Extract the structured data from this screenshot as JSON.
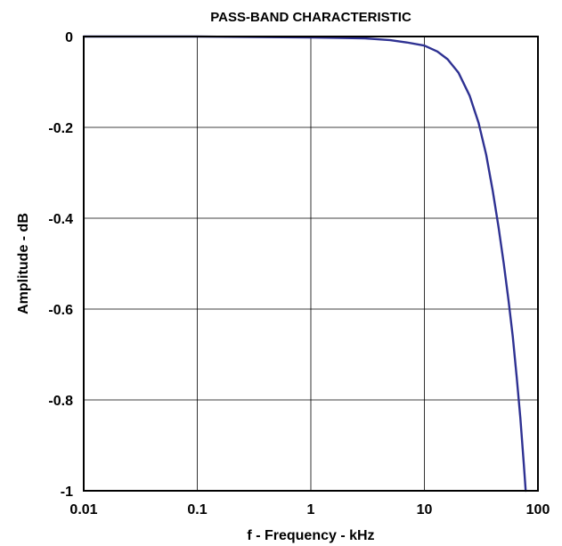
{
  "chart_data": {
    "type": "line",
    "title": "PASS-BAND CHARACTERISTIC",
    "xlabel": "f - Frequency - kHz",
    "ylabel": "Amplitude - dB",
    "x_scale": "log",
    "xlim": [
      0.01,
      100
    ],
    "ylim": [
      -1,
      0
    ],
    "x_ticks": [
      0.01,
      0.1,
      1,
      10,
      100
    ],
    "x_tick_labels": [
      "0.01",
      "0.1",
      "1",
      "10",
      "100"
    ],
    "y_ticks": [
      0,
      -0.2,
      -0.4,
      -0.6,
      -0.8,
      -1
    ],
    "y_tick_labels": [
      "0",
      "-0.2",
      "-0.4",
      "-0.6",
      "-0.8",
      "-1"
    ],
    "grid": true,
    "series": [
      {
        "color": "#2e3192",
        "x": [
          0.01,
          0.1,
          1,
          3,
          5,
          7,
          10,
          13,
          16,
          20,
          25,
          30,
          35,
          40,
          45,
          50,
          55,
          60,
          65,
          70,
          75,
          78
        ],
        "y": [
          0,
          0,
          -0.002,
          -0.004,
          -0.008,
          -0.013,
          -0.02,
          -0.033,
          -0.05,
          -0.08,
          -0.13,
          -0.19,
          -0.26,
          -0.34,
          -0.42,
          -0.5,
          -0.58,
          -0.66,
          -0.75,
          -0.84,
          -0.94,
          -1.0
        ]
      }
    ]
  }
}
